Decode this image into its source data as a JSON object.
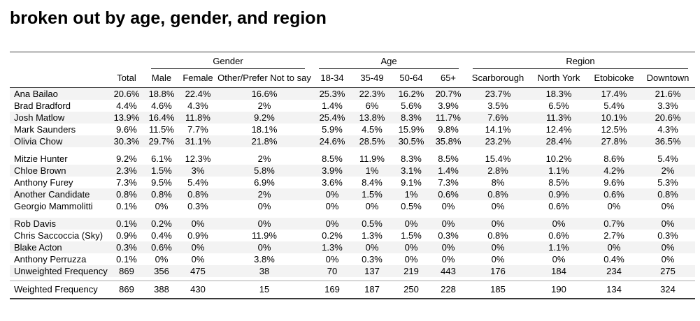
{
  "title": "broken out by age, gender, and region",
  "colors": {
    "stripe": "#f3f3f3",
    "rule_dark": "#3a3a3a",
    "rule_light": "#a8a8a8",
    "text": "#000000"
  },
  "table": {
    "stub_header": "",
    "total_header": "Total",
    "groups": [
      {
        "label": "Gender",
        "columns": [
          "Male",
          "Female",
          "Other/Prefer Not to say"
        ]
      },
      {
        "label": "Age",
        "columns": [
          "18-34",
          "35-49",
          "50-64",
          "65+"
        ]
      },
      {
        "label": "Region",
        "columns": [
          "Scarborough",
          "North York",
          "Etobicoke",
          "Downtown"
        ]
      }
    ],
    "row_groups": [
      [
        {
          "label": "Ana Bailao",
          "values": [
            "20.6%",
            "18.8%",
            "22.4%",
            "16.6%",
            "25.3%",
            "22.3%",
            "16.2%",
            "20.7%",
            "23.7%",
            "18.3%",
            "17.4%",
            "21.6%"
          ]
        },
        {
          "label": "Brad Bradford",
          "values": [
            "4.4%",
            "4.6%",
            "4.3%",
            "2%",
            "1.4%",
            "6%",
            "5.6%",
            "3.9%",
            "3.5%",
            "6.5%",
            "5.4%",
            "3.3%"
          ]
        },
        {
          "label": "Josh Matlow",
          "values": [
            "13.9%",
            "16.4%",
            "11.8%",
            "9.2%",
            "25.4%",
            "13.8%",
            "8.3%",
            "11.7%",
            "7.6%",
            "11.3%",
            "10.1%",
            "20.6%"
          ]
        },
        {
          "label": "Mark Saunders",
          "values": [
            "9.6%",
            "11.5%",
            "7.7%",
            "18.1%",
            "5.9%",
            "4.5%",
            "15.9%",
            "9.8%",
            "14.1%",
            "12.4%",
            "12.5%",
            "4.3%"
          ]
        },
        {
          "label": "Olivia Chow",
          "values": [
            "30.3%",
            "29.7%",
            "31.1%",
            "21.8%",
            "24.6%",
            "28.5%",
            "30.5%",
            "35.8%",
            "23.2%",
            "28.4%",
            "27.8%",
            "36.5%"
          ]
        }
      ],
      [
        {
          "label": "Mitzie Hunter",
          "values": [
            "9.2%",
            "6.1%",
            "12.3%",
            "2%",
            "8.5%",
            "11.9%",
            "8.3%",
            "8.5%",
            "15.4%",
            "10.2%",
            "8.6%",
            "5.4%"
          ]
        },
        {
          "label": "Chloe Brown",
          "values": [
            "2.3%",
            "1.5%",
            "3%",
            "5.8%",
            "3.9%",
            "1%",
            "3.1%",
            "1.4%",
            "2.8%",
            "1.1%",
            "4.2%",
            "2%"
          ]
        },
        {
          "label": "Anthony Furey",
          "values": [
            "7.3%",
            "9.5%",
            "5.4%",
            "6.9%",
            "3.6%",
            "8.4%",
            "9.1%",
            "7.3%",
            "8%",
            "8.5%",
            "9.6%",
            "5.3%"
          ]
        },
        {
          "label": "Another Candidate",
          "values": [
            "0.8%",
            "0.8%",
            "0.8%",
            "2%",
            "0%",
            "1.5%",
            "1%",
            "0.6%",
            "0.8%",
            "0.9%",
            "0.6%",
            "0.8%"
          ]
        },
        {
          "label": "Georgio Mammolitti",
          "values": [
            "0.1%",
            "0%",
            "0.3%",
            "0%",
            "0%",
            "0%",
            "0.5%",
            "0%",
            "0%",
            "0.6%",
            "0%",
            "0%"
          ]
        }
      ],
      [
        {
          "label": "Rob Davis",
          "values": [
            "0.1%",
            "0.2%",
            "0%",
            "0%",
            "0%",
            "0.5%",
            "0%",
            "0%",
            "0%",
            "0%",
            "0.7%",
            "0%"
          ]
        },
        {
          "label": "Chris Saccoccia (Sky)",
          "values": [
            "0.9%",
            "0.4%",
            "0.9%",
            "11.9%",
            "0.2%",
            "1.3%",
            "1.5%",
            "0.3%",
            "0.8%",
            "0.6%",
            "2.7%",
            "0.3%"
          ]
        },
        {
          "label": "Blake Acton",
          "values": [
            "0.3%",
            "0.6%",
            "0%",
            "0%",
            "1.3%",
            "0%",
            "0%",
            "0%",
            "0%",
            "1.1%",
            "0%",
            "0%"
          ]
        },
        {
          "label": "Anthony Perruzza",
          "values": [
            "0.1%",
            "0%",
            "0%",
            "3.8%",
            "0%",
            "0.3%",
            "0%",
            "0%",
            "0%",
            "0%",
            "0.4%",
            "0%"
          ]
        },
        {
          "label": "Unweighted Frequency",
          "values": [
            "869",
            "356",
            "475",
            "38",
            "70",
            "137",
            "219",
            "443",
            "176",
            "184",
            "234",
            "275"
          ]
        }
      ],
      [
        {
          "label": "Weighted Frequency",
          "values": [
            "869",
            "388",
            "430",
            "15",
            "169",
            "187",
            "250",
            "228",
            "185",
            "190",
            "134",
            "324"
          ]
        }
      ]
    ]
  }
}
